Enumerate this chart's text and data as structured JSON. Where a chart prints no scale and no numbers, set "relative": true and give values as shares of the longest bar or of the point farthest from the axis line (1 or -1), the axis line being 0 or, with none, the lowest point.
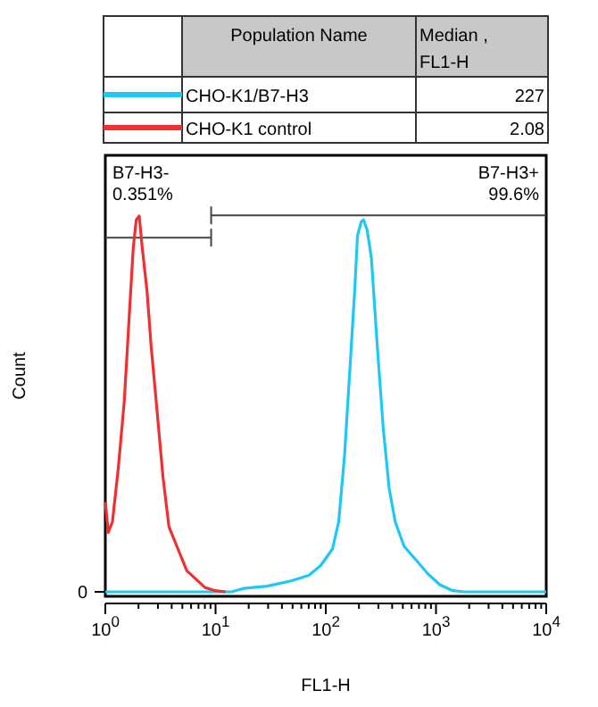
{
  "chart_data": {
    "type": "line",
    "xlabel": "FL1-H",
    "ylabel": "Count",
    "legend_title": "Population Name",
    "legend": "top",
    "relative": true,
    "log": "x",
    "marker": "none",
    "line_style": "solid",
    "xlim": [
      1,
      10000
    ],
    "xticks": [
      {
        "value": 1,
        "label": "10$^{0}$"
      },
      {
        "value": 2,
        "label": null
      },
      {
        "value": 3,
        "label": null
      },
      {
        "value": 4,
        "label": null
      },
      {
        "value": 5,
        "label": null
      },
      {
        "value": 6,
        "label": null
      },
      {
        "value": 7,
        "label": null
      },
      {
        "value": 8,
        "label": null
      },
      {
        "value": 9,
        "label": null
      },
      {
        "value": 10,
        "label": "10$^{1}$"
      },
      {
        "value": 20,
        "label": null
      },
      {
        "value": 30,
        "label": null
      },
      {
        "value": 40,
        "label": null
      },
      {
        "value": 50,
        "label": null
      },
      {
        "value": 60,
        "label": null
      },
      {
        "value": 70,
        "label": null
      },
      {
        "value": 80,
        "label": null
      },
      {
        "value": 90,
        "label": null
      },
      {
        "value": 100,
        "label": "10$^{2}$"
      },
      {
        "value": 200,
        "label": null
      },
      {
        "value": 300,
        "label": null
      },
      {
        "value": 400,
        "label": null
      },
      {
        "value": 500,
        "label": null
      },
      {
        "value": 600,
        "label": null
      },
      {
        "value": 700,
        "label": null
      },
      {
        "value": 800,
        "label": null
      },
      {
        "value": 900,
        "label": null
      },
      {
        "value": 1000,
        "label": "10$^{3}$"
      },
      {
        "value": 2000,
        "label": null
      },
      {
        "value": 3000,
        "label": null
      },
      {
        "value": 4000,
        "label": null
      },
      {
        "value": 5000,
        "label": null
      },
      {
        "value": 6000,
        "label": null
      },
      {
        "value": 7000,
        "label": null
      },
      {
        "value": 8000,
        "label": null
      },
      {
        "value": 9000,
        "label": null
      },
      {
        "value": 10000,
        "label": "10$^{4}$"
      }
    ],
    "annotations": [
      "Median , FL1-H",
      "227",
      "2.08",
      "B7-H3-",
      "0.351%",
      "B7-H3+",
      "99.6%",
      "0"
    ],
    "series": [
      {
        "name": "CHO-K1/B7-H3",
        "color": "#1ec8f5",
        "x": [
          1,
          13.9,
          17.9,
          29.4,
          48.3,
          70.2,
          90,
          115,
          131,
          148,
          167,
          183,
          194,
          210,
          220,
          237,
          259,
          293,
          332,
          376,
          426,
          513,
          658,
          843,
          1081,
          1386,
          1778,
          10000
        ],
        "values": [
          0,
          0,
          0.009,
          0.015,
          0.029,
          0.044,
          0.07,
          0.114,
          0.187,
          0.363,
          0.612,
          0.802,
          0.948,
          0.985,
          0.99,
          0.963,
          0.89,
          0.656,
          0.436,
          0.275,
          0.187,
          0.121,
          0.085,
          0.048,
          0.019,
          0.004,
          0,
          0
        ]
      },
      {
        "name": "CHO-K1 control",
        "color": "#f03030",
        "x": [
          1,
          1.064,
          1.161,
          1.315,
          1.488,
          1.644,
          1.794,
          1.909,
          2.03,
          2.16,
          2.39,
          2.6,
          2.95,
          3.34,
          3.78,
          4.56,
          5.49,
          6.62,
          7.97,
          9.6,
          12.3
        ],
        "values": [
          0.239,
          0.158,
          0.187,
          0.333,
          0.509,
          0.729,
          0.917,
          0.99,
          1,
          0.917,
          0.8,
          0.656,
          0.48,
          0.304,
          0.173,
          0.114,
          0.056,
          0.034,
          0.012,
          0.004,
          0
        ]
      }
    ]
  }
}
